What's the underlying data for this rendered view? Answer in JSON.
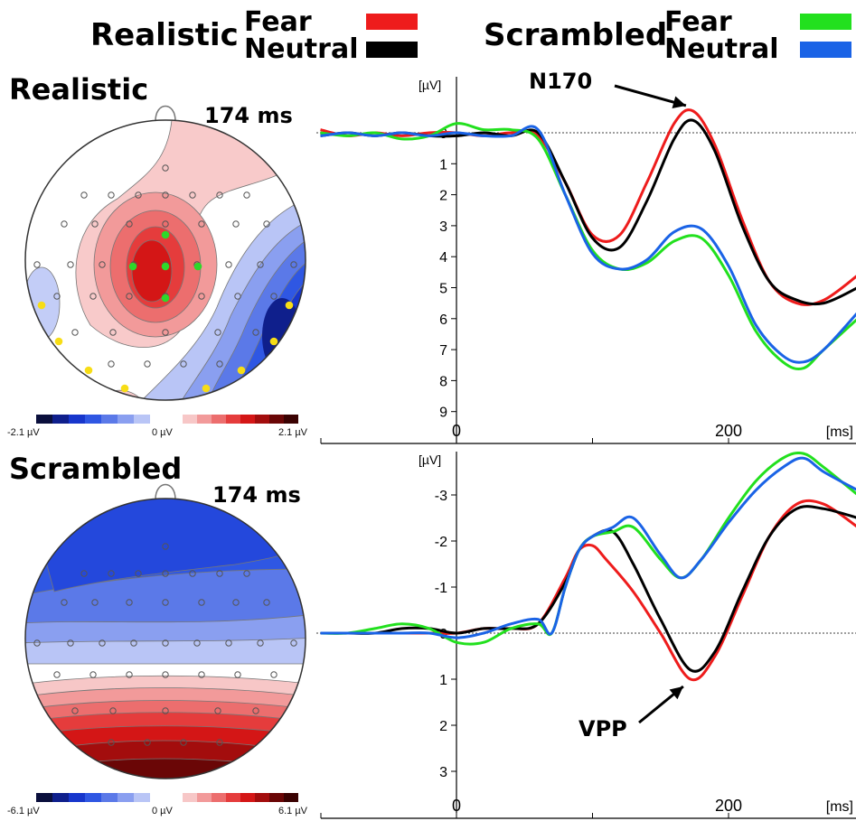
{
  "legend": {
    "realistic": {
      "label": "Realistic",
      "fear": "Fear",
      "neutral": "Neutral",
      "fear_color": "#ee1c1c",
      "neutral_color": "#000000"
    },
    "scrambled": {
      "label": "Scrambled",
      "fear": "Fear",
      "neutral": "Neutral",
      "fear_color": "#22e01e",
      "neutral_color": "#1a63e6"
    }
  },
  "topomaps": [
    {
      "title": "Realistic",
      "time": "174 ms",
      "scale_min": "-2.1 µV",
      "scale_mid": "0 µV",
      "scale_max": "2.1 µV"
    },
    {
      "title": "Scrambled",
      "time": "174 ms",
      "scale_min": "-6.1 µV",
      "scale_mid": "0 µV",
      "scale_max": "6.1 µV"
    }
  ],
  "colorbar": {
    "negative": [
      "#0a0f3c",
      "#0f1f8c",
      "#1736cc",
      "#2f57e3",
      "#5b79e8",
      "#8a9ff0",
      "#b9c5f6"
    ],
    "positive": [
      "#f7c7c7",
      "#f29a9a",
      "#ec6e6e",
      "#e53c3c",
      "#d41616",
      "#a30d0d",
      "#6a0606",
      "#3a0202"
    ]
  },
  "chart_data": [
    {
      "type": "line",
      "panel": "Realistic",
      "ylabel": "[µV]",
      "xlabel": "[ms]",
      "y_inverted": true,
      "ylim": [
        -1,
        9
      ],
      "xlim": [
        -100,
        295
      ],
      "yticks": [
        0,
        1,
        2,
        3,
        4,
        5,
        6,
        7,
        8,
        9
      ],
      "xticks": [
        {
          "value": 0,
          "label": "0"
        },
        {
          "value": 100,
          "label": ""
        },
        {
          "value": 200,
          "label": "200"
        }
      ],
      "annotation": {
        "text": "N170",
        "x": 174,
        "y": -0.7
      },
      "series": [
        {
          "name": "Fear",
          "color": "#ee1c1c",
          "x": [
            -100,
            -80,
            -60,
            -40,
            -20,
            0,
            20,
            40,
            60,
            80,
            100,
            120,
            140,
            160,
            174,
            190,
            210,
            230,
            250,
            270,
            295
          ],
          "y": [
            -0.1,
            0.1,
            0.0,
            0.1,
            0.0,
            0.0,
            0.1,
            0.0,
            0.1,
            1.6,
            3.3,
            3.3,
            1.6,
            -0.3,
            -0.7,
            0.4,
            2.8,
            4.8,
            5.5,
            5.4,
            4.6
          ]
        },
        {
          "name": "Neutral",
          "color": "#000000",
          "x": [
            -100,
            -80,
            -60,
            -40,
            -20,
            0,
            20,
            40,
            60,
            80,
            100,
            120,
            140,
            160,
            174,
            190,
            210,
            230,
            250,
            270,
            295
          ],
          "y": [
            0.1,
            0.0,
            0.1,
            0.0,
            0.1,
            0.1,
            0.0,
            0.1,
            0.0,
            1.6,
            3.4,
            3.7,
            2.2,
            0.2,
            -0.4,
            0.6,
            3.0,
            4.8,
            5.4,
            5.5,
            5.0
          ]
        },
        {
          "name": "Fear",
          "color": "#22e01e",
          "x": [
            -100,
            -80,
            -60,
            -40,
            -20,
            0,
            20,
            40,
            60,
            80,
            100,
            120,
            140,
            160,
            180,
            200,
            220,
            240,
            255,
            270,
            295
          ],
          "y": [
            0.0,
            0.1,
            0.0,
            0.2,
            0.1,
            -0.3,
            -0.1,
            -0.1,
            0.2,
            2.0,
            3.8,
            4.4,
            4.2,
            3.5,
            3.4,
            4.6,
            6.4,
            7.4,
            7.6,
            7.0,
            6.0
          ]
        },
        {
          "name": "Neutral",
          "color": "#1a63e6",
          "x": [
            -100,
            -80,
            -60,
            -40,
            -20,
            0,
            20,
            40,
            60,
            80,
            100,
            120,
            140,
            160,
            180,
            200,
            220,
            240,
            255,
            270,
            295
          ],
          "y": [
            0.1,
            0.0,
            0.1,
            0.0,
            0.1,
            0.0,
            0.1,
            0.1,
            -0.1,
            2.0,
            3.9,
            4.4,
            4.1,
            3.2,
            3.1,
            4.3,
            6.2,
            7.2,
            7.4,
            7.0,
            5.8
          ]
        }
      ]
    },
    {
      "type": "line",
      "panel": "Scrambled",
      "ylabel": "[µV]",
      "xlabel": "[ms]",
      "y_inverted": true,
      "ylim": [
        -3.5,
        3.5
      ],
      "xlim": [
        -100,
        295
      ],
      "yticks": [
        -3,
        -2,
        -1,
        0,
        1,
        2,
        3
      ],
      "ytick_labels": [
        "-3",
        "-2",
        "-1",
        "0",
        "1",
        "2",
        "3"
      ],
      "xticks": [
        {
          "value": 0,
          "label": "0"
        },
        {
          "value": 100,
          "label": ""
        },
        {
          "value": 200,
          "label": "200"
        }
      ],
      "annotation": {
        "text": "VPP",
        "x": 172,
        "y": 1.0
      },
      "series": [
        {
          "name": "Fear",
          "color": "#ee1c1c",
          "x": [
            -100,
            -80,
            -60,
            -40,
            -20,
            0,
            20,
            40,
            60,
            80,
            90,
            100,
            110,
            130,
            150,
            172,
            190,
            210,
            230,
            250,
            270,
            295
          ],
          "y": [
            0.0,
            0.0,
            0.0,
            0.0,
            0.0,
            0.0,
            -0.1,
            -0.1,
            -0.2,
            -1.2,
            -1.8,
            -1.9,
            -1.6,
            -0.9,
            0.0,
            1.0,
            0.5,
            -0.8,
            -2.1,
            -2.8,
            -2.8,
            -2.3
          ]
        },
        {
          "name": "Neutral",
          "color": "#000000",
          "x": [
            -100,
            -80,
            -60,
            -40,
            -20,
            0,
            20,
            40,
            60,
            80,
            90,
            100,
            115,
            130,
            150,
            172,
            190,
            210,
            230,
            250,
            270,
            295
          ],
          "y": [
            0.0,
            0.0,
            0.0,
            -0.1,
            -0.1,
            0.0,
            -0.1,
            -0.1,
            -0.2,
            -1.1,
            -1.8,
            -2.1,
            -2.2,
            -1.5,
            -0.3,
            0.8,
            0.4,
            -0.9,
            -2.1,
            -2.7,
            -2.7,
            -2.5
          ]
        },
        {
          "name": "Fear",
          "color": "#22e01e",
          "x": [
            -100,
            -80,
            -60,
            -40,
            -20,
            0,
            20,
            40,
            60,
            70,
            80,
            90,
            100,
            115,
            130,
            150,
            165,
            180,
            200,
            220,
            240,
            255,
            270,
            295
          ],
          "y": [
            0.0,
            0.0,
            -0.1,
            -0.2,
            -0.1,
            0.2,
            0.2,
            -0.1,
            -0.2,
            0.0,
            -1.0,
            -1.8,
            -2.1,
            -2.2,
            -2.3,
            -1.6,
            -1.2,
            -1.6,
            -2.5,
            -3.3,
            -3.8,
            -3.9,
            -3.6,
            -3.0
          ]
        },
        {
          "name": "Neutral",
          "color": "#1a63e6",
          "x": [
            -100,
            -80,
            -60,
            -40,
            -20,
            0,
            20,
            40,
            60,
            70,
            80,
            90,
            100,
            115,
            130,
            150,
            165,
            180,
            200,
            220,
            240,
            255,
            270,
            295
          ],
          "y": [
            0.0,
            0.0,
            0.0,
            0.0,
            0.0,
            0.1,
            0.0,
            -0.2,
            -0.3,
            0.0,
            -1.0,
            -1.8,
            -2.1,
            -2.3,
            -2.5,
            -1.7,
            -1.2,
            -1.6,
            -2.4,
            -3.1,
            -3.6,
            -3.8,
            -3.5,
            -3.1
          ]
        }
      ]
    }
  ]
}
